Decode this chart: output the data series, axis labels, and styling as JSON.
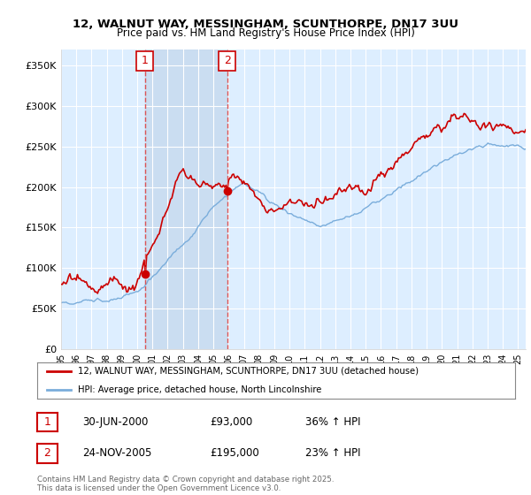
{
  "title_line1": "12, WALNUT WAY, MESSINGHAM, SCUNTHORPE, DN17 3UU",
  "title_line2": "Price paid vs. HM Land Registry's House Price Index (HPI)",
  "background_color": "#ffffff",
  "plot_bg_color": "#ddeeff",
  "grid_color": "#ffffff",
  "shade_color": "#c8dcf0",
  "sale1_date": "30-JUN-2000",
  "sale1_price": 93000,
  "sale1_pct": "36%",
  "sale2_date": "24-NOV-2005",
  "sale2_price": 195000,
  "sale2_pct": "23%",
  "legend_label_red": "12, WALNUT WAY, MESSINGHAM, SCUNTHORPE, DN17 3UU (detached house)",
  "legend_label_blue": "HPI: Average price, detached house, North Lincolnshire",
  "footer": "Contains HM Land Registry data © Crown copyright and database right 2025.\nThis data is licensed under the Open Government Licence v3.0.",
  "red_color": "#cc0000",
  "blue_color": "#7aaddb",
  "dashed_red": "#dd4444",
  "ylim": [
    0,
    370000
  ],
  "yticks": [
    0,
    50000,
    100000,
    150000,
    200000,
    250000,
    300000,
    350000
  ],
  "ytick_labels": [
    "£0",
    "£50K",
    "£100K",
    "£150K",
    "£200K",
    "£250K",
    "£300K",
    "£350K"
  ],
  "sale1_year": 2000.5,
  "sale2_year": 2005.9,
  "xlim_start": 1995.0,
  "xlim_end": 2025.5
}
